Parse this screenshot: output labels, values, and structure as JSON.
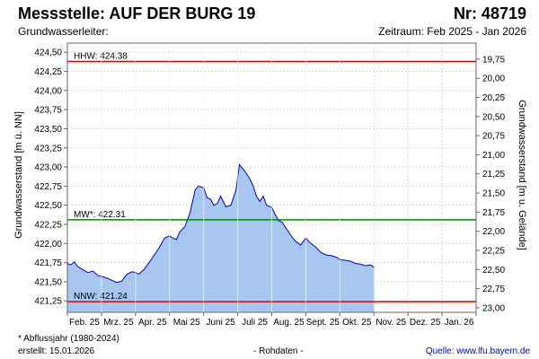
{
  "header": {
    "station_label": "Messstelle: AUF DER BURG 19",
    "number_label": "Nr: 48719",
    "aquifer_label": "Grundwasserleiter:",
    "period_label": "Zeitraum: Feb 2025 - Jan 2026"
  },
  "footer": {
    "note": "* Abflussjahr (1980-2024)",
    "created": "erstellt:  15.01.2026",
    "rawdata": "- Rohdaten -",
    "source": "Quelle: www.lfu.bayern.de"
  },
  "chart_data": {
    "type": "area",
    "ylabel": "Grundwasserstand [m ü. NN]",
    "y2label": "Grundwasserstand [m u. Gelände]",
    "ylim": [
      421.1,
      424.62
    ],
    "y_ticks": [
      421.25,
      421.5,
      421.75,
      422.0,
      422.25,
      422.5,
      422.75,
      423.0,
      423.25,
      423.5,
      423.75,
      424.0,
      424.25,
      424.5
    ],
    "y_tick_labels": [
      "421,25",
      "421,50",
      "421,75",
      "422,00",
      "422,25",
      "422,50",
      "422,75",
      "423,00",
      "423,25",
      "423,50",
      "423,75",
      "424,00",
      "424,25",
      "424,50"
    ],
    "y2_ticks": [
      19.75,
      20.0,
      20.25,
      20.5,
      20.75,
      21.0,
      21.25,
      21.5,
      21.75,
      22.0,
      22.25,
      22.5,
      22.75,
      23.0
    ],
    "y2_tick_labels": [
      "19,75",
      "20,00",
      "20,25",
      "20,50",
      "20,75",
      "21,00",
      "21,25",
      "21,50",
      "21,75",
      "22,00",
      "22,25",
      "22,50",
      "22,75",
      "23,00"
    ],
    "ground_level": 444.16,
    "x_months": [
      "Feb. 25",
      "Mrz. 25",
      "Apr. 25",
      "Mai 25",
      "Juni 25",
      "Juli 25",
      "Aug. 25",
      "Sept. 25",
      "Okt. 25",
      "Nov. 25",
      "Dez. 25",
      "Jan. 26"
    ],
    "x_range_months": [
      0,
      12
    ],
    "grid": true,
    "reference_lines": [
      {
        "label": "HHW: 424.38",
        "value": 424.38,
        "color": "#dd0000"
      },
      {
        "label": "MW*: 422.31",
        "value": 422.31,
        "color": "#008800"
      },
      {
        "label": "NNW: 421.24",
        "value": 421.24,
        "color": "#dd0000"
      }
    ],
    "fill_color": "#a7c7f0",
    "line_color": "#0000cc",
    "series": [
      {
        "x": [
          0.0,
          0.1,
          0.2,
          0.3,
          0.45,
          0.6,
          0.75,
          0.9,
          1.0,
          1.15,
          1.3,
          1.45,
          1.6,
          1.75,
          1.9,
          2.0,
          2.1,
          2.25,
          2.4,
          2.55,
          2.7,
          2.85,
          3.0,
          3.1,
          3.2,
          3.3,
          3.45,
          3.6,
          3.75,
          3.85,
          4.0,
          4.1,
          4.2,
          4.3,
          4.4,
          4.5,
          4.65,
          4.8,
          4.95,
          5.05,
          5.2,
          5.35,
          5.45,
          5.55,
          5.65,
          5.75,
          5.85,
          6.0,
          6.1,
          6.2,
          6.3,
          6.45,
          6.6,
          6.7,
          6.85,
          7.0,
          7.15,
          7.3,
          7.45,
          7.6,
          7.75,
          7.9,
          8.0,
          8.15,
          8.3,
          8.45,
          8.6,
          8.75,
          8.9,
          9.0
        ],
        "values": [
          421.74,
          421.72,
          421.76,
          421.7,
          421.66,
          421.62,
          421.64,
          421.58,
          421.57,
          421.55,
          421.52,
          421.49,
          421.51,
          421.6,
          421.63,
          421.62,
          421.6,
          421.66,
          421.75,
          421.85,
          421.95,
          422.07,
          422.1,
          422.07,
          422.05,
          422.15,
          422.22,
          422.4,
          422.7,
          422.75,
          422.73,
          422.6,
          422.58,
          422.5,
          422.52,
          422.62,
          422.48,
          422.5,
          422.7,
          423.03,
          422.95,
          422.85,
          422.76,
          422.62,
          422.55,
          422.62,
          422.5,
          422.47,
          422.38,
          422.3,
          422.28,
          422.18,
          422.08,
          422.03,
          421.98,
          422.07,
          422.0,
          421.95,
          421.88,
          421.85,
          421.84,
          421.82,
          421.79,
          421.78,
          421.77,
          421.74,
          421.73,
          421.71,
          421.72,
          421.69
        ]
      }
    ]
  }
}
